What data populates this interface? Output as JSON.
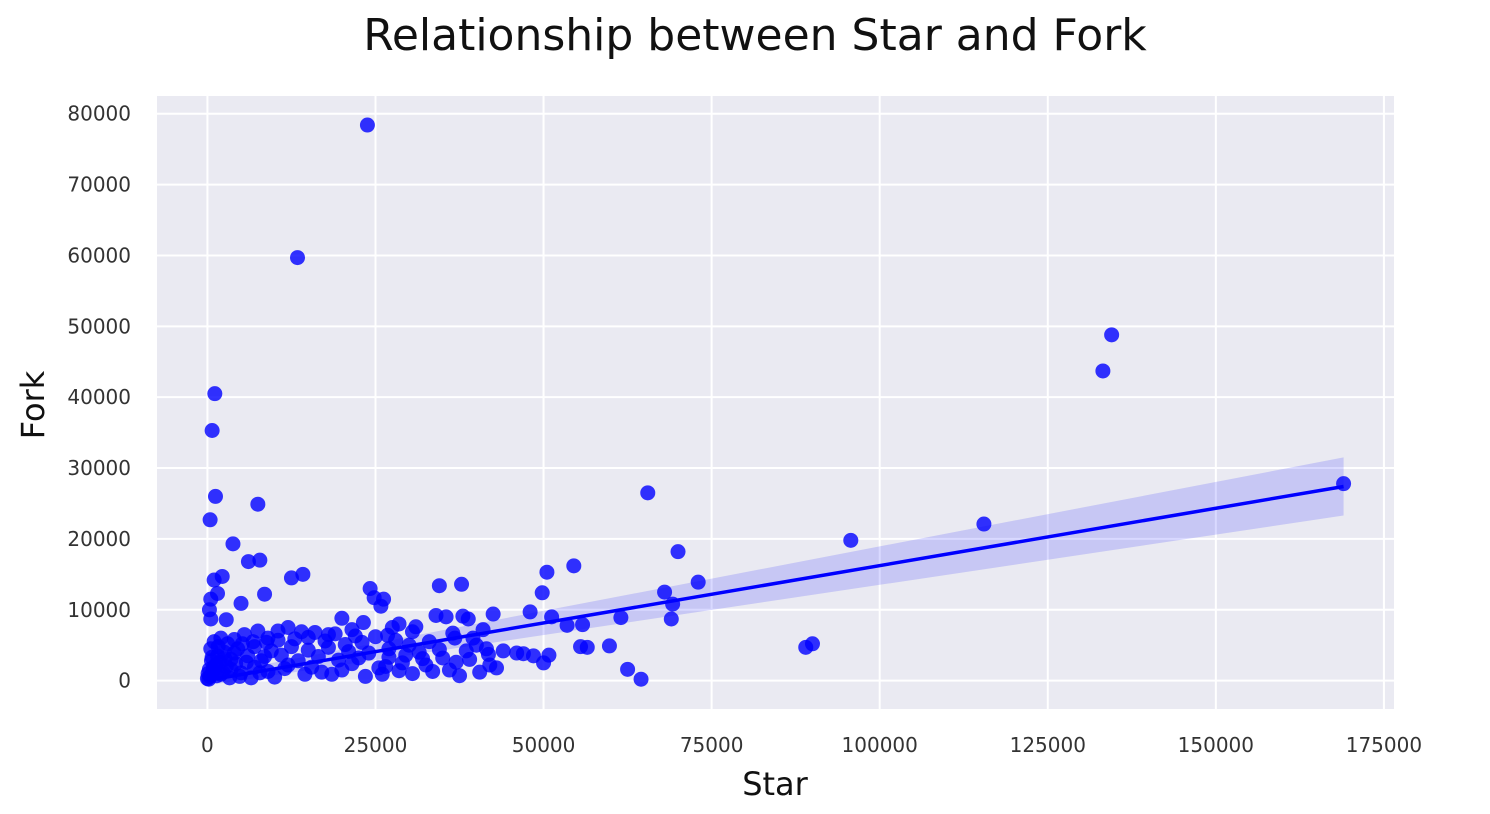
{
  "chart_data": {
    "type": "scatter",
    "title": "Relationship between Star and Fork",
    "xlabel": "Star",
    "ylabel": "Fork",
    "xlim": [
      -7500,
      176500
    ],
    "ylim": [
      -4000,
      82500
    ],
    "xticks": [
      0,
      25000,
      50000,
      75000,
      100000,
      125000,
      150000,
      175000
    ],
    "yticks": [
      0,
      10000,
      20000,
      30000,
      40000,
      50000,
      60000,
      70000,
      80000
    ],
    "grid": true,
    "background_color": "#eaeaf2",
    "point_color": "#0000ff",
    "regression": {
      "x_start": 0,
      "x_end": 169000,
      "y_start": 50,
      "y_end": 27400,
      "ci_start": [
        -650,
        750
      ],
      "ci_end": [
        23300,
        31500
      ]
    },
    "points": [
      [
        23800,
        78400
      ],
      [
        13400,
        59700
      ],
      [
        134500,
        48800
      ],
      [
        133200,
        43700
      ],
      [
        1100,
        40500
      ],
      [
        700,
        35300
      ],
      [
        1200,
        26000
      ],
      [
        7500,
        24900
      ],
      [
        400,
        22700
      ],
      [
        65500,
        26500
      ],
      [
        169000,
        27800
      ],
      [
        115500,
        22100
      ],
      [
        95700,
        19800
      ],
      [
        70000,
        18200
      ],
      [
        73000,
        13900
      ],
      [
        68000,
        12500
      ],
      [
        69200,
        10800
      ],
      [
        69000,
        8700
      ],
      [
        61500,
        8900
      ],
      [
        89000,
        4700
      ],
      [
        90000,
        5200
      ],
      [
        62500,
        1600
      ],
      [
        64500,
        200
      ],
      [
        59800,
        4900
      ],
      [
        56500,
        4700
      ],
      [
        55500,
        4800
      ],
      [
        55800,
        7900
      ],
      [
        53500,
        7800
      ],
      [
        51200,
        9000
      ],
      [
        50500,
        15300
      ],
      [
        49800,
        12400
      ],
      [
        54500,
        16200
      ],
      [
        48000,
        9700
      ],
      [
        50800,
        3600
      ],
      [
        50000,
        2500
      ],
      [
        48500,
        3500
      ],
      [
        47000,
        3800
      ],
      [
        46000,
        3900
      ],
      [
        42500,
        9400
      ],
      [
        42000,
        2200
      ],
      [
        40500,
        1200
      ],
      [
        38800,
        8700
      ],
      [
        38000,
        9100
      ],
      [
        37800,
        13600
      ],
      [
        34500,
        13400
      ],
      [
        35500,
        9000
      ],
      [
        36800,
        6000
      ],
      [
        37500,
        700
      ],
      [
        34000,
        9200
      ],
      [
        31500,
        4000
      ],
      [
        24200,
        13000
      ],
      [
        24800,
        11700
      ],
      [
        26200,
        11500
      ],
      [
        25800,
        10500
      ],
      [
        14200,
        15000
      ],
      [
        12500,
        14500
      ],
      [
        8500,
        12200
      ],
      [
        5000,
        10900
      ],
      [
        3800,
        19300
      ],
      [
        7800,
        17000
      ],
      [
        6100,
        16800
      ],
      [
        2200,
        14700
      ],
      [
        1000,
        14200
      ],
      [
        1500,
        12300
      ],
      [
        500,
        11500
      ],
      [
        300,
        10000
      ],
      [
        500,
        8700
      ],
      [
        2800,
        8600
      ],
      [
        23200,
        8200
      ],
      [
        20000,
        8800
      ],
      [
        21500,
        7200
      ],
      [
        27500,
        7500
      ],
      [
        28500,
        8000
      ],
      [
        31000,
        7600
      ],
      [
        33000,
        5500
      ],
      [
        30000,
        5000
      ],
      [
        29000,
        2500
      ],
      [
        26500,
        2000
      ],
      [
        27000,
        4500
      ],
      [
        22000,
        6300
      ],
      [
        18000,
        6500
      ],
      [
        16000,
        6800
      ],
      [
        14000,
        6900
      ],
      [
        12000,
        7500
      ],
      [
        10500,
        7000
      ],
      [
        9000,
        6000
      ],
      [
        7500,
        7000
      ],
      [
        5500,
        6500
      ],
      [
        4000,
        5800
      ],
      [
        3000,
        5200
      ],
      [
        2000,
        6000
      ],
      [
        1000,
        5500
      ],
      [
        500,
        4500
      ],
      [
        1500,
        3500
      ],
      [
        2500,
        4000
      ],
      [
        3500,
        3000
      ],
      [
        4500,
        4500
      ],
      [
        6000,
        3500
      ],
      [
        7000,
        4800
      ],
      [
        8000,
        2800
      ],
      [
        9500,
        4200
      ],
      [
        11000,
        3600
      ],
      [
        12500,
        4800
      ],
      [
        13500,
        2800
      ],
      [
        15000,
        4300
      ],
      [
        16500,
        3400
      ],
      [
        18000,
        4700
      ],
      [
        19500,
        2900
      ],
      [
        21000,
        4100
      ],
      [
        22500,
        3200
      ],
      [
        24000,
        3900
      ],
      [
        25500,
        1800
      ],
      [
        27000,
        3300
      ],
      [
        28500,
        1400
      ],
      [
        30500,
        1000
      ],
      [
        32500,
        2200
      ],
      [
        36000,
        1500
      ],
      [
        39000,
        3000
      ],
      [
        41500,
        4500
      ],
      [
        44000,
        4200
      ],
      [
        20000,
        1500
      ],
      [
        17000,
        1200
      ],
      [
        14500,
        900
      ],
      [
        11500,
        1700
      ],
      [
        9000,
        1300
      ],
      [
        7000,
        1900
      ],
      [
        5000,
        1100
      ],
      [
        3500,
        1600
      ],
      [
        2000,
        900
      ],
      [
        1200,
        2200
      ],
      [
        800,
        1300
      ],
      [
        400,
        600
      ],
      [
        200,
        200
      ],
      [
        600,
        2800
      ],
      [
        900,
        1800
      ],
      [
        1400,
        700
      ],
      [
        1800,
        2600
      ],
      [
        2300,
        1200
      ],
      [
        2800,
        2000
      ],
      [
        3300,
        400
      ],
      [
        4200,
        2400
      ],
      [
        4800,
        600
      ],
      [
        5800,
        2600
      ],
      [
        6500,
        400
      ],
      [
        7800,
        1100
      ],
      [
        8500,
        3400
      ],
      [
        10000,
        500
      ],
      [
        12000,
        2200
      ],
      [
        15500,
        1900
      ],
      [
        18500,
        900
      ],
      [
        21500,
        2400
      ],
      [
        23500,
        600
      ],
      [
        26000,
        900
      ],
      [
        29500,
        3600
      ],
      [
        33500,
        1300
      ],
      [
        35000,
        3200
      ],
      [
        37000,
        2600
      ],
      [
        38500,
        4200
      ],
      [
        40000,
        5000
      ],
      [
        43000,
        1800
      ],
      [
        0,
        300
      ],
      [
        100,
        1000
      ],
      [
        300,
        1600
      ],
      [
        700,
        3300
      ],
      [
        1600,
        4800
      ],
      [
        2600,
        3100
      ],
      [
        4000,
        3900
      ],
      [
        5200,
        5200
      ],
      [
        6800,
        5500
      ],
      [
        8800,
        5400
      ],
      [
        10500,
        5700
      ],
      [
        13000,
        5900
      ],
      [
        15000,
        6100
      ],
      [
        17500,
        5600
      ],
      [
        19000,
        6600
      ],
      [
        20500,
        5100
      ],
      [
        23000,
        5400
      ],
      [
        25000,
        6200
      ],
      [
        26800,
        6400
      ],
      [
        28000,
        5700
      ],
      [
        30500,
        6900
      ],
      [
        32000,
        3100
      ],
      [
        34500,
        4400
      ],
      [
        36500,
        6700
      ],
      [
        39500,
        6000
      ],
      [
        41000,
        7200
      ],
      [
        41800,
        3700
      ]
    ]
  }
}
